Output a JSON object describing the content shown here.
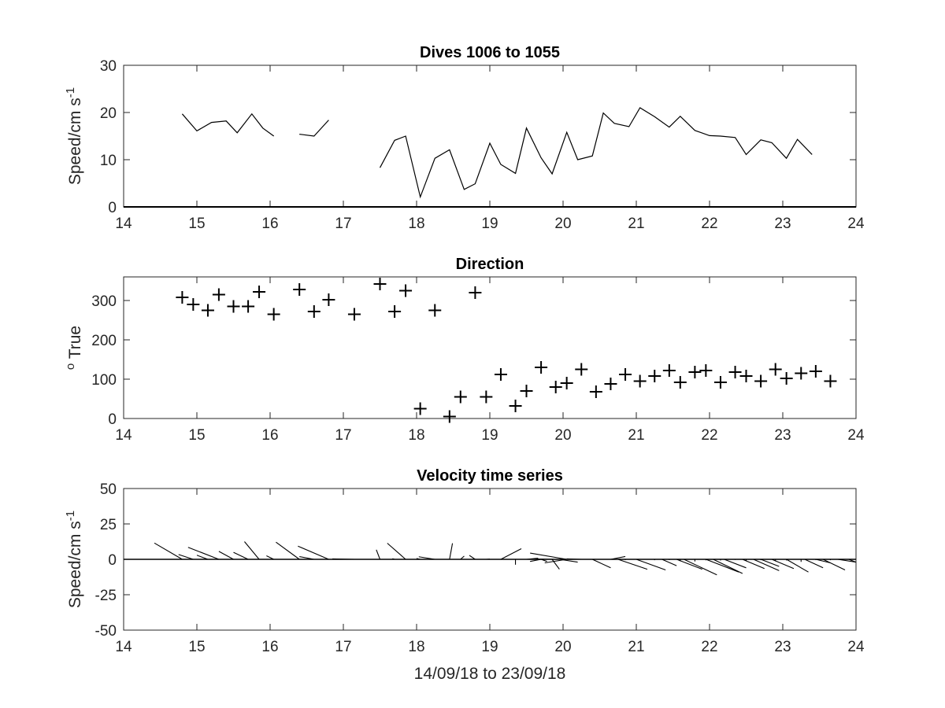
{
  "chart_data": [
    {
      "type": "line",
      "title": "Dives 1006 to 1055",
      "ylabel": "Speed/cm s",
      "ylabel_sup": "-1",
      "xlim": [
        14,
        24
      ],
      "ylim": [
        0,
        30
      ],
      "xticks": [
        14,
        15,
        16,
        17,
        18,
        19,
        20,
        21,
        22,
        23,
        24
      ],
      "yticks": [
        0,
        10,
        20,
        30
      ],
      "grid": false,
      "series": [
        {
          "segments": [
            [
              [
                14.8,
                19.7
              ],
              [
                15.0,
                16.1
              ],
              [
                15.2,
                17.9
              ],
              [
                15.4,
                18.2
              ],
              [
                15.55,
                15.7
              ],
              [
                15.75,
                19.7
              ],
              [
                15.9,
                16.7
              ],
              [
                16.05,
                15.0
              ]
            ],
            [
              [
                16.4,
                15.4
              ],
              [
                16.6,
                15.0
              ],
              [
                16.8,
                18.4
              ]
            ],
            [
              [
                17.5,
                8.3
              ],
              [
                17.7,
                14.1
              ],
              [
                17.85,
                15.0
              ],
              [
                18.05,
                2.1
              ],
              [
                18.25,
                10.3
              ],
              [
                18.45,
                12.1
              ],
              [
                18.65,
                3.7
              ],
              [
                18.8,
                4.9
              ],
              [
                19.0,
                13.5
              ],
              [
                19.15,
                9.0
              ],
              [
                19.35,
                7.1
              ],
              [
                19.5,
                16.7
              ],
              [
                19.7,
                10.4
              ],
              [
                19.85,
                7.0
              ],
              [
                20.05,
                15.8
              ],
              [
                20.2,
                10.0
              ],
              [
                20.4,
                10.8
              ],
              [
                20.55,
                19.9
              ],
              [
                20.7,
                17.7
              ],
              [
                20.9,
                17.0
              ],
              [
                21.05,
                21.0
              ],
              [
                21.25,
                19.1
              ],
              [
                21.45,
                16.9
              ],
              [
                21.6,
                19.2
              ],
              [
                21.8,
                16.2
              ],
              [
                22.0,
                15.1
              ],
              [
                22.15,
                15.0
              ],
              [
                22.35,
                14.7
              ],
              [
                22.5,
                11.1
              ],
              [
                22.7,
                14.2
              ],
              [
                22.85,
                13.6
              ],
              [
                23.05,
                10.3
              ],
              [
                23.2,
                14.3
              ],
              [
                23.4,
                11.1
              ]
            ]
          ]
        }
      ]
    },
    {
      "type": "scatter",
      "title": "Direction",
      "ylabel": "True",
      "ylabel_pre": "o",
      "xlim": [
        14,
        24
      ],
      "ylim": [
        0,
        360
      ],
      "xticks": [
        14,
        15,
        16,
        17,
        18,
        19,
        20,
        21,
        22,
        23,
        24
      ],
      "yticks": [
        0,
        100,
        200,
        300
      ],
      "marker": "+",
      "grid": false,
      "points": [
        [
          14.8,
          308
        ],
        [
          14.95,
          290
        ],
        [
          15.15,
          275
        ],
        [
          15.3,
          315
        ],
        [
          15.5,
          285
        ],
        [
          15.7,
          285
        ],
        [
          15.85,
          322
        ],
        [
          16.05,
          265
        ],
        [
          16.4,
          328
        ],
        [
          16.6,
          272
        ],
        [
          16.8,
          302
        ],
        [
          17.15,
          265
        ],
        [
          17.5,
          342
        ],
        [
          17.7,
          272
        ],
        [
          17.85,
          325
        ],
        [
          18.05,
          25
        ],
        [
          18.25,
          275
        ],
        [
          18.45,
          5
        ],
        [
          18.6,
          55
        ],
        [
          18.8,
          320
        ],
        [
          18.95,
          55
        ],
        [
          19.15,
          112
        ],
        [
          19.35,
          32
        ],
        [
          19.5,
          70
        ],
        [
          19.7,
          130
        ],
        [
          19.9,
          80
        ],
        [
          20.05,
          90
        ],
        [
          20.25,
          125
        ],
        [
          20.45,
          68
        ],
        [
          20.65,
          88
        ],
        [
          20.85,
          112
        ],
        [
          21.05,
          95
        ],
        [
          21.25,
          108
        ],
        [
          21.45,
          122
        ],
        [
          21.6,
          92
        ],
        [
          21.8,
          118
        ],
        [
          21.95,
          122
        ],
        [
          22.15,
          92
        ],
        [
          22.35,
          118
        ],
        [
          22.5,
          108
        ],
        [
          22.7,
          95
        ],
        [
          22.9,
          125
        ],
        [
          23.05,
          102
        ],
        [
          23.25,
          115
        ],
        [
          23.45,
          120
        ],
        [
          23.65,
          95
        ]
      ]
    },
    {
      "type": "quiver",
      "title": "Velocity time series",
      "ylabel": "Speed/cm s",
      "ylabel_sup": "-1",
      "xlabel": "14/09/18 to 23/09/18",
      "xlim": [
        14,
        24
      ],
      "ylim": [
        -50,
        50
      ],
      "xticks": [
        14,
        15,
        16,
        17,
        18,
        19,
        20,
        21,
        22,
        23,
        24
      ],
      "yticks": [
        -50,
        -25,
        0,
        25,
        50
      ],
      "grid": false,
      "baseline": 0,
      "vectors_note": "tip offsets: dx in x-axis days, dy in speed units (cm s-1)",
      "vectors": [
        [
          14.8,
          -0.38,
          11.5
        ],
        [
          14.95,
          -0.2,
          3.4
        ],
        [
          15.15,
          -0.15,
          2.9
        ],
        [
          15.3,
          -0.42,
          8.5
        ],
        [
          15.5,
          -0.2,
          5.6
        ],
        [
          15.7,
          -0.2,
          4.9
        ],
        [
          15.85,
          -0.2,
          12.5
        ],
        [
          16.05,
          -0.1,
          2.5
        ],
        [
          16.4,
          -0.32,
          12.1
        ],
        [
          16.6,
          -0.2,
          1.9
        ],
        [
          16.8,
          -0.42,
          9.3
        ],
        [
          17.15,
          -0.3,
          0.3
        ],
        [
          17.5,
          -0.05,
          6.8
        ],
        [
          17.7,
          -0.03,
          0.5
        ],
        [
          17.85,
          -0.25,
          11.4
        ],
        [
          18.05,
          -0.05,
          0.6
        ],
        [
          18.25,
          -0.22,
          1.8
        ],
        [
          18.45,
          0.04,
          11.3
        ],
        [
          18.6,
          0.05,
          2.3
        ],
        [
          18.8,
          -0.08,
          2.8
        ],
        [
          18.95,
          0.05,
          0.2
        ],
        [
          19.15,
          0.28,
          7.5
        ],
        [
          19.35,
          0.0,
          -3.8
        ],
        [
          19.5,
          0.16,
          0.8
        ],
        [
          19.7,
          0.08,
          -1.5
        ],
        [
          19.9,
          -0.25,
          0.2
        ],
        [
          20.05,
          -0.5,
          4.4
        ],
        [
          20.25,
          -0.2,
          0.3
        ],
        [
          20.45,
          0.0,
          0.2
        ],
        [
          20.65,
          0.2,
          2.0
        ],
        [
          20.85,
          0.0,
          -0.5
        ],
        [
          21.05,
          0.0,
          0.2
        ],
        [
          21.25,
          0.0,
          -0.6
        ],
        [
          21.45,
          0.0,
          -0.5
        ],
        [
          21.6,
          0.0,
          -1.3
        ],
        [
          21.8,
          0.0,
          -1.5
        ],
        [
          21.95,
          0.0,
          -0.7
        ],
        [
          22.15,
          0.0,
          -0.8
        ],
        [
          22.35,
          0.0,
          -0.4
        ],
        [
          22.5,
          0.0,
          -1.2
        ],
        [
          22.7,
          0.0,
          -0.6
        ],
        [
          22.9,
          0.0,
          -1.4
        ],
        [
          23.05,
          0.0,
          -0.8
        ],
        [
          23.25,
          0.0,
          -1.8
        ],
        [
          23.45,
          0.0,
          -0.5
        ],
        [
          23.65,
          0.0,
          -0.6
        ],
        [
          20.75,
          0.4,
          -7.0
        ],
        [
          21.0,
          0.4,
          -7.5
        ],
        [
          21.35,
          0.2,
          -4.5
        ],
        [
          21.55,
          0.35,
          -7.0
        ],
        [
          21.65,
          0.45,
          -11.0
        ],
        [
          21.95,
          0.45,
          -9.0
        ],
        [
          22.05,
          0.4,
          -10.0
        ],
        [
          22.2,
          0.3,
          -6.0
        ],
        [
          22.45,
          0.3,
          -6.5
        ],
        [
          22.6,
          0.35,
          -8.0
        ],
        [
          22.7,
          0.25,
          -5.0
        ],
        [
          22.85,
          0.3,
          -6.5
        ],
        [
          23.05,
          0.3,
          -9.0
        ],
        [
          23.3,
          0.25,
          -6.0
        ],
        [
          23.45,
          0.2,
          -2.5
        ],
        [
          23.55,
          0.3,
          -7.5
        ],
        [
          23.75,
          0.25,
          -2.0
        ],
        [
          23.9,
          0.1,
          -2.0
        ],
        [
          20.4,
          0.25,
          -6.0
        ],
        [
          20.05,
          -0.3,
          -2.5
        ],
        [
          19.7,
          -0.15,
          -1.5
        ],
        [
          19.85,
          0.1,
          -7.0
        ],
        [
          19.95,
          0.25,
          -2.0
        ]
      ]
    }
  ]
}
